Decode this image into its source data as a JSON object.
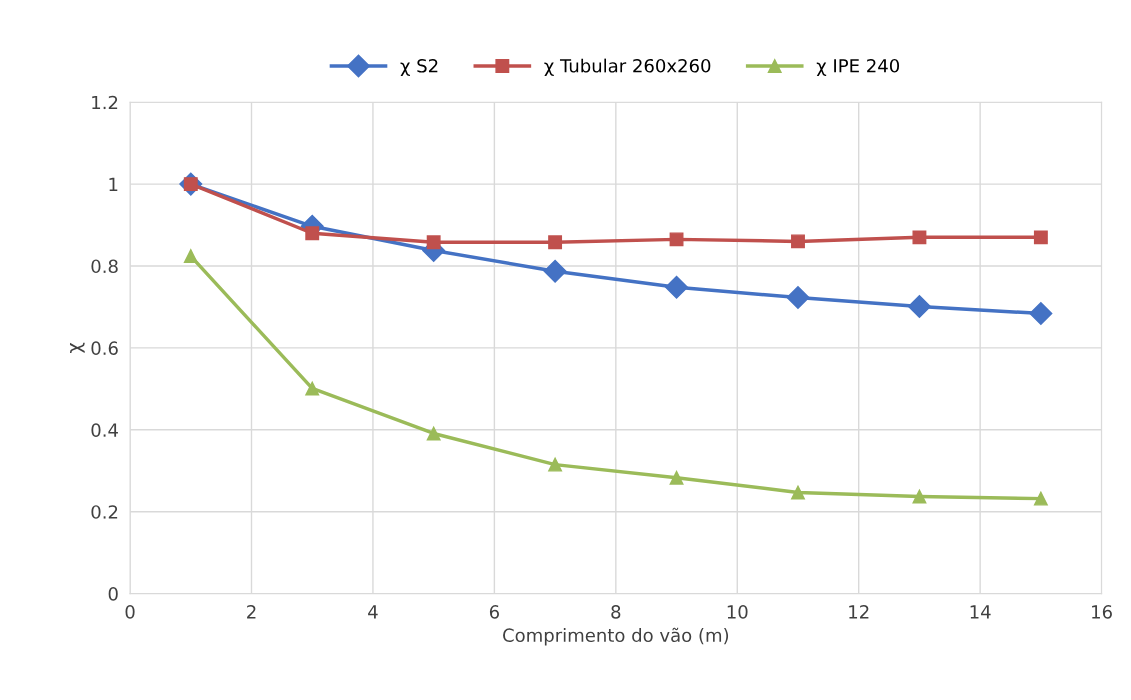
{
  "chart_data": {
    "type": "line",
    "xlabel": "Comprimento do vão (m)",
    "ylabel": "χ",
    "x": [
      1,
      3,
      5,
      7,
      9,
      11,
      13,
      15
    ],
    "series": [
      {
        "name": "χ S2",
        "color": "#4472c4",
        "marker": "diamond",
        "values": [
          1.0,
          0.897,
          0.838,
          0.787,
          0.748,
          0.723,
          0.701,
          0.684
        ]
      },
      {
        "name": "χ Tubular 260x260",
        "color": "#c0504d",
        "marker": "square",
        "values": [
          1.0,
          0.88,
          0.858,
          0.858,
          0.865,
          0.86,
          0.87,
          0.87
        ]
      },
      {
        "name": "χ IPE 240",
        "color": "#9bbb59",
        "marker": "triangle",
        "values": [
          0.824,
          0.501,
          0.391,
          0.315,
          0.283,
          0.247,
          0.237,
          0.232
        ]
      }
    ],
    "xlim": [
      0,
      16
    ],
    "xticks": [
      0,
      2,
      4,
      6,
      8,
      10,
      12,
      14,
      16
    ],
    "ylim": [
      0,
      1.2
    ],
    "yticks": [
      0,
      0.2,
      0.4,
      0.6,
      0.8,
      1,
      1.2
    ],
    "grid": true,
    "legend": "top",
    "line_style": "solid"
  }
}
